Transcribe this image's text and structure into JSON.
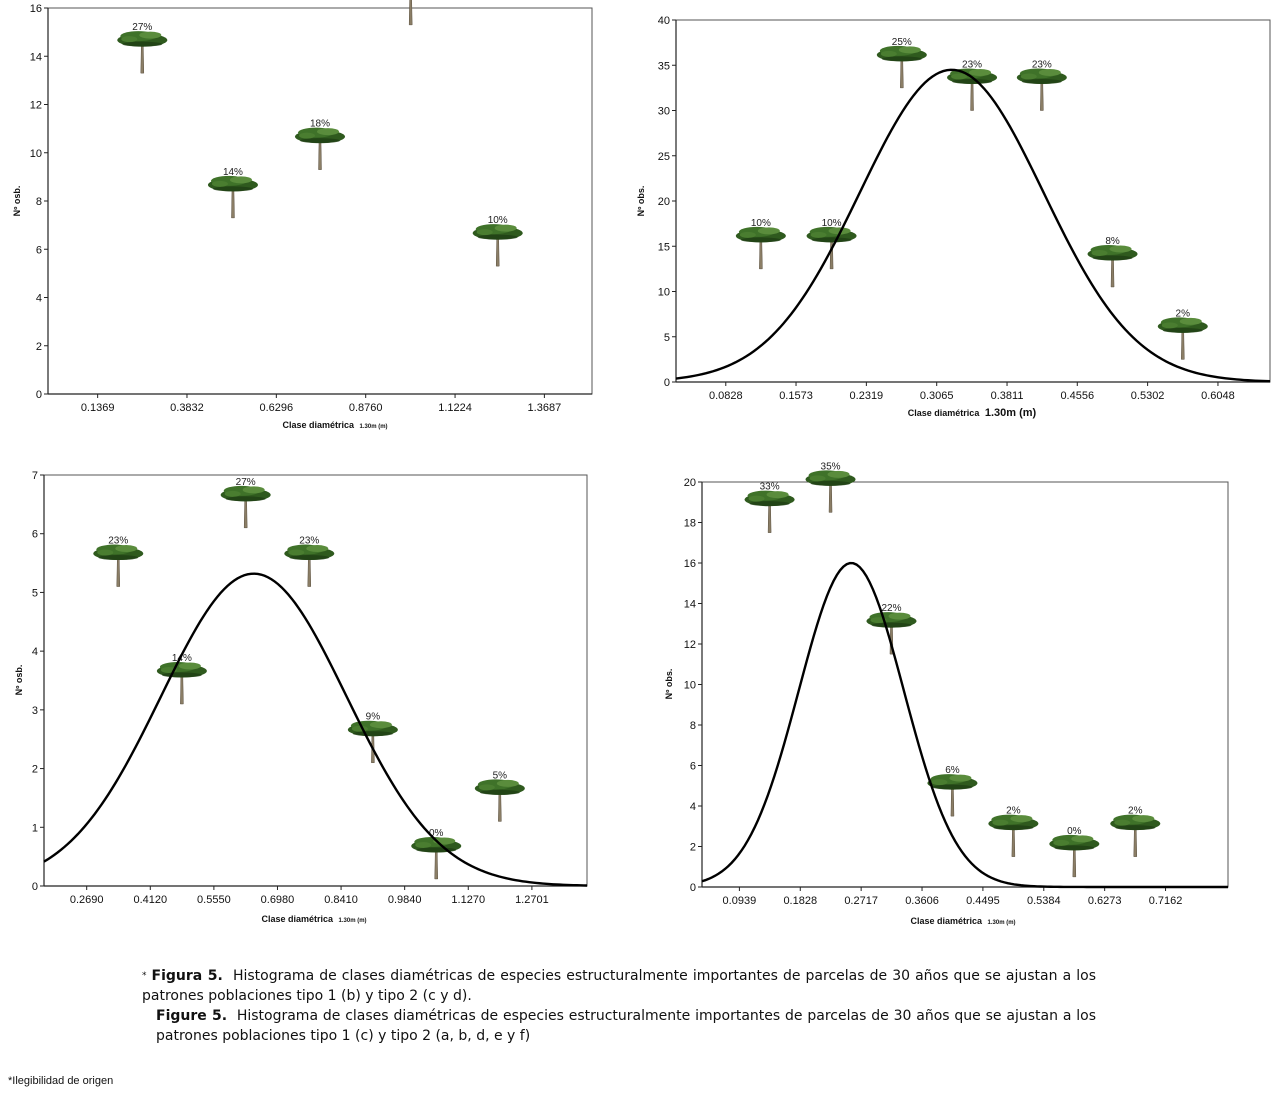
{
  "chart_data": [
    {
      "type": "scatter",
      "xlabel": "Clase diamétrica",
      "xlabel_sub": "1.30m (m)",
      "ylabel": "Nº osb.",
      "x_ticks": [
        "0.1369",
        "0.3832",
        "0.6296",
        "0.8760",
        "1.1224",
        "1.3687"
      ],
      "y_ticks": [
        "0",
        "2",
        "4",
        "6",
        "8",
        "10",
        "12",
        "14",
        "16"
      ],
      "xlim": [
        0.0,
        1.5
      ],
      "ylim": [
        0,
        16
      ],
      "grid": false,
      "points": [
        {
          "x": 0.26,
          "y": 13.3,
          "label": "27%"
        },
        {
          "x": 0.51,
          "y": 7.3,
          "label": "14%"
        },
        {
          "x": 0.75,
          "y": 9.3,
          "label": "18%"
        },
        {
          "x": 1.0,
          "y": 15.3,
          "label": ""
        },
        {
          "x": 1.24,
          "y": 5.3,
          "label": "10%"
        }
      ]
    },
    {
      "type": "scatter",
      "xlabel": "Clase diamétrica",
      "xlabel_sub": "1.30m (m)",
      "ylabel": "Nº obs.",
      "x_ticks": [
        "0.0828",
        "0.1573",
        "0.2319",
        "0.3065",
        "0.3811",
        "0.4556",
        "0.5302",
        "0.6048"
      ],
      "y_ticks": [
        "0",
        "5",
        "10",
        "15",
        "20",
        "25",
        "30",
        "35",
        "40"
      ],
      "xlim": [
        0.03,
        0.66
      ],
      "ylim": [
        0,
        40
      ],
      "grid": false,
      "curve": {
        "mu": 0.3224,
        "sigma": 0.0975,
        "peak": 34.5
      },
      "points": [
        {
          "x": 0.12,
          "y": 12.5,
          "label": "10%"
        },
        {
          "x": 0.195,
          "y": 12.5,
          "label": "10%"
        },
        {
          "x": 0.2695,
          "y": 32.5,
          "label": "25%"
        },
        {
          "x": 0.344,
          "y": 30,
          "label": "23%"
        },
        {
          "x": 0.418,
          "y": 30,
          "label": "23%"
        },
        {
          "x": 0.493,
          "y": 10.5,
          "label": "8%"
        },
        {
          "x": 0.5675,
          "y": 2.5,
          "label": "2%"
        }
      ]
    },
    {
      "type": "scatter",
      "xlabel": "Clase diamétrica",
      "xlabel_sub": "1.30m (m)",
      "ylabel": "Nº osb.",
      "x_ticks": [
        "0.2690",
        "0.4120",
        "0.5550",
        "0.6980",
        "0.8410",
        "0.9840",
        "1.1270",
        "1.2701"
      ],
      "y_ticks": [
        "0",
        "1",
        "2",
        "3",
        "4",
        "5",
        "6",
        "7"
      ],
      "xlim": [
        0.173,
        1.394
      ],
      "ylim": [
        0,
        7
      ],
      "grid": false,
      "curve": {
        "mu": 0.6447,
        "sigma": 0.2088,
        "peak": 5.32
      },
      "points": [
        {
          "x": 0.34,
          "y": 5.1,
          "label": "23%"
        },
        {
          "x": 0.483,
          "y": 3.1,
          "label": "14%"
        },
        {
          "x": 0.6265,
          "y": 6.1,
          "label": "27%"
        },
        {
          "x": 0.7695,
          "y": 5.1,
          "label": "23%"
        },
        {
          "x": 0.9125,
          "y": 2.1,
          "label": "9%"
        },
        {
          "x": 1.055,
          "y": 0.12,
          "label": "0%"
        },
        {
          "x": 1.198,
          "y": 1.1,
          "label": "5%"
        }
      ]
    },
    {
      "type": "scatter",
      "xlabel": "Clase diamétrica",
      "xlabel_sub": "1.30m (m)",
      "ylabel": "Nº obs.",
      "x_ticks": [
        "0.0939",
        "0.1828",
        "0.2717",
        "0.3606",
        "0.4495",
        "0.5384",
        "0.6273",
        "0.7162"
      ],
      "y_ticks": [
        "0",
        "2",
        "4",
        "6",
        "8",
        "10",
        "12",
        "14",
        "16",
        "18",
        "20"
      ],
      "xlim": [
        0.0393,
        0.8074
      ],
      "ylim": [
        0,
        20
      ],
      "grid": false,
      "curve": {
        "mu": 0.2573,
        "sigma": 0.0767,
        "peak": 16.0
      },
      "points": [
        {
          "x": 0.138,
          "y": 17.5,
          "label": "33%"
        },
        {
          "x": 0.227,
          "y": 18.5,
          "label": "35%"
        },
        {
          "x": 0.316,
          "y": 11.5,
          "label": "22%"
        },
        {
          "x": 0.405,
          "y": 3.5,
          "label": "6%"
        },
        {
          "x": 0.494,
          "y": 1.5,
          "label": "2%"
        },
        {
          "x": 0.583,
          "y": 0.5,
          "label": "0%"
        },
        {
          "x": 0.672,
          "y": 1.5,
          "label": "2%"
        }
      ]
    }
  ],
  "caption": {
    "star": "*",
    "es_lead": "Figura 5.",
    "es_text": "Histograma de clases diamétricas de especies estructuralmente importantes de parcelas de 30 años que se ajustan a los patrones poblaciones tipo 1 (b) y tipo 2 (c y d).",
    "en_lead": "Figure 5.",
    "en_text": "Histograma de clases diamétricas de especies estructuralmente importantes de parcelas de 30 años que se ajustan a los patrones poblaciones tipo 1 (c) y tipo 2 (a, b, d, e y f)"
  },
  "footnote": "*Ilegibilidad de origen"
}
